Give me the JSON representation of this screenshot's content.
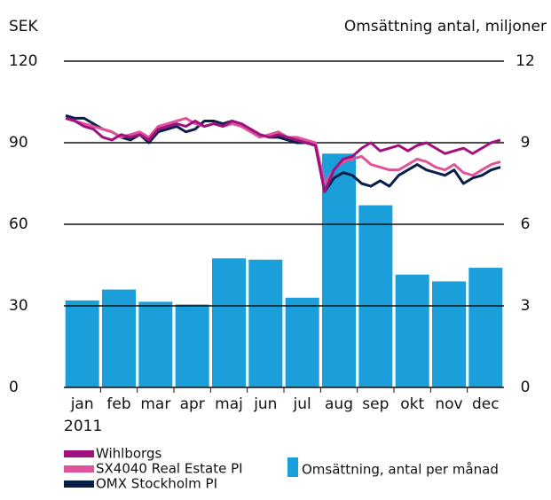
{
  "chart_data": {
    "type": "bar",
    "y_label": "SEK",
    "y2_label": "Omsättning antal, miljoner",
    "x_label": "2011",
    "categories": [
      "jan",
      "feb",
      "mar",
      "apr",
      "maj",
      "jun",
      "jul",
      "aug",
      "sep",
      "okt",
      "nov",
      "dec"
    ],
    "series": [
      {
        "name": "Omsättning, antal per månad",
        "color": "#1a9fdb",
        "axis": "y2",
        "values": [
          3.2,
          3.6,
          3.15,
          3.05,
          4.75,
          4.7,
          3.3,
          8.6,
          6.7,
          4.15,
          3.9,
          4.4
        ]
      }
    ],
    "line_series": [
      {
        "name": "Wihlborgs",
        "color": "#a0117f",
        "values": [
          99,
          98,
          96,
          95,
          92,
          91,
          93,
          92,
          93,
          91,
          95,
          96,
          97,
          96,
          98,
          96,
          97,
          96,
          98,
          97,
          95,
          93,
          92,
          93,
          92,
          91,
          90,
          89,
          72,
          80,
          84,
          85,
          88,
          90,
          87,
          88,
          89,
          87,
          89,
          90,
          88,
          86,
          87,
          88,
          86,
          88,
          90,
          91
        ]
      },
      {
        "name": "SX4040 Real Estate PI",
        "color": "#e0529a",
        "values": [
          99,
          98,
          97,
          96,
          95,
          94,
          92,
          93,
          94,
          92,
          96,
          97,
          98,
          99,
          97,
          96,
          97,
          96,
          97,
          96,
          94,
          92,
          93,
          94,
          92,
          92,
          91,
          90,
          75,
          80,
          83,
          84,
          85,
          82,
          81,
          80,
          80,
          82,
          84,
          83,
          81,
          80,
          82,
          79,
          78,
          80,
          82,
          83
        ]
      },
      {
        "name": "OMX Stockholm PI",
        "color": "#0a1e4a",
        "values": [
          100,
          99,
          99,
          97,
          95,
          94,
          92,
          91,
          93,
          90,
          94,
          95,
          96,
          94,
          95,
          98,
          98,
          97,
          98,
          96,
          95,
          93,
          92,
          92,
          91,
          90,
          90,
          89,
          72,
          77,
          79,
          78,
          75,
          74,
          76,
          74,
          78,
          80,
          82,
          80,
          79,
          78,
          80,
          75,
          77,
          78,
          80,
          81
        ]
      }
    ],
    "ylim": [
      0,
      120
    ],
    "yticks": [
      0,
      30,
      60,
      90,
      120
    ],
    "y2lim": [
      0,
      12
    ],
    "y2ticks": [
      0,
      3,
      6,
      9,
      12
    ],
    "grid": true
  }
}
